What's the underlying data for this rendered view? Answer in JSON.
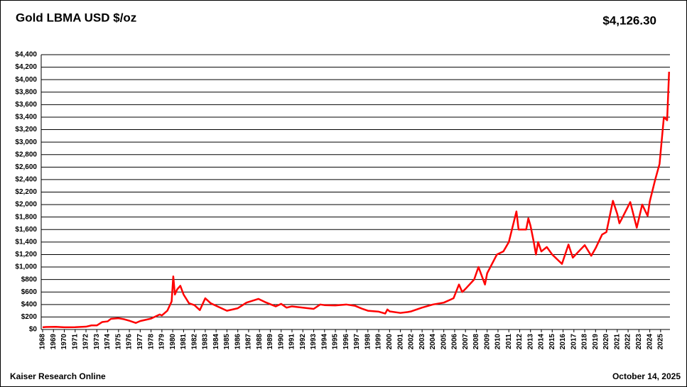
{
  "chart_data": {
    "type": "line",
    "title": "Gold LBMA USD $/oz",
    "latest_value": "$4,126.30",
    "source": "Kaiser Research Online",
    "date": "October 14, 2025",
    "series": [
      {
        "name": "Gold",
        "color": "#ff0000",
        "x": [
          1968.0,
          1968.3,
          1969.2,
          1970.0,
          1971.0,
          1972.0,
          1972.5,
          1973.0,
          1973.5,
          1974.0,
          1974.3,
          1975.0,
          1975.5,
          1976.0,
          1976.6,
          1977.0,
          1978.0,
          1978.8,
          1979.0,
          1979.5,
          1979.9,
          1980.05,
          1980.2,
          1980.4,
          1980.7,
          1981.0,
          1981.5,
          1982.0,
          1982.5,
          1983.0,
          1983.5,
          1984.0,
          1985.0,
          1986.0,
          1986.8,
          1987.9,
          1988.5,
          1989.5,
          1990.0,
          1990.5,
          1991.0,
          1992.0,
          1993.0,
          1993.6,
          1994.0,
          1995.0,
          1996.0,
          1996.8,
          1997.5,
          1998.0,
          1999.0,
          1999.6,
          1999.8,
          2000.0,
          2001.0,
          2001.7,
          2002.0,
          2002.5,
          2003.0,
          2004.0,
          2005.0,
          2005.9,
          2006.4,
          2006.7,
          2007.0,
          2007.8,
          2008.2,
          2008.8,
          2009.0,
          2009.9,
          2010.5,
          2011.0,
          2011.7,
          2011.9,
          2012.6,
          2012.8,
          2013.0,
          2013.3,
          2013.5,
          2013.7,
          2014.0,
          2014.5,
          2015.0,
          2015.9,
          2016.5,
          2016.9,
          2017.5,
          2018.0,
          2018.6,
          2019.0,
          2019.6,
          2020.0,
          2020.6,
          2021.0,
          2021.2,
          2021.5,
          2022.2,
          2022.8,
          2023.3,
          2023.8,
          2024.0,
          2024.5,
          2024.9,
          2025.3,
          2025.6,
          2025.78
        ],
        "values": [
          35,
          40,
          43,
          35,
          37,
          45,
          65,
          65,
          120,
          130,
          170,
          180,
          165,
          140,
          105,
          135,
          175,
          240,
          225,
          300,
          450,
          850,
          560,
          640,
          700,
          560,
          420,
          390,
          310,
          500,
          420,
          380,
          300,
          340,
          430,
          490,
          440,
          370,
          410,
          350,
          370,
          350,
          330,
          400,
          390,
          385,
          400,
          380,
          330,
          300,
          285,
          255,
          320,
          290,
          265,
          280,
          290,
          320,
          350,
          400,
          430,
          500,
          720,
          600,
          650,
          800,
          1000,
          720,
          900,
          1200,
          1250,
          1400,
          1890,
          1600,
          1600,
          1780,
          1660,
          1400,
          1200,
          1400,
          1250,
          1320,
          1200,
          1050,
          1360,
          1150,
          1260,
          1350,
          1180,
          1300,
          1520,
          1560,
          2060,
          1850,
          1700,
          1800,
          2040,
          1630,
          2000,
          1820,
          2050,
          2400,
          2650,
          3400,
          3350,
          4126.3
        ]
      }
    ],
    "xlim": [
      1968,
      2025.86
    ],
    "xticks": [
      1968,
      1969,
      1970,
      1971,
      1972,
      1973,
      1974,
      1975,
      1976,
      1977,
      1978,
      1979,
      1980,
      1981,
      1982,
      1983,
      1984,
      1985,
      1986,
      1987,
      1988,
      1989,
      1990,
      1991,
      1992,
      1993,
      1994,
      1995,
      1996,
      1997,
      1998,
      1999,
      2000,
      2001,
      2002,
      2003,
      2004,
      2005,
      2006,
      2007,
      2008,
      2009,
      2010,
      2011,
      2012,
      2013,
      2014,
      2015,
      2016,
      2017,
      2018,
      2019,
      2020,
      2021,
      2022,
      2023,
      2024,
      2025
    ],
    "ylim": [
      0,
      4400
    ],
    "yticks": [
      {
        "value": 0,
        "label": "$0"
      },
      {
        "value": 200,
        "label": "$200"
      },
      {
        "value": 400,
        "label": "$400"
      },
      {
        "value": 600,
        "label": "$600"
      },
      {
        "value": 800,
        "label": "$800"
      },
      {
        "value": 1000,
        "label": "$1,000"
      },
      {
        "value": 1200,
        "label": "$1,200"
      },
      {
        "value": 1400,
        "label": "$1,400"
      },
      {
        "value": 1600,
        "label": "$1,600"
      },
      {
        "value": 1800,
        "label": "$1,800"
      },
      {
        "value": 2000,
        "label": "$2,000"
      },
      {
        "value": 2200,
        "label": "$2,200"
      },
      {
        "value": 2400,
        "label": "$2,400"
      },
      {
        "value": 2600,
        "label": "$2,600"
      },
      {
        "value": 2800,
        "label": "$2,800"
      },
      {
        "value": 3000,
        "label": "$3,000"
      },
      {
        "value": 3200,
        "label": "$3,200"
      },
      {
        "value": 3400,
        "label": "$3,400"
      },
      {
        "value": 3600,
        "label": "$3,600"
      },
      {
        "value": 3800,
        "label": "$3,800"
      },
      {
        "value": 4000,
        "label": "$4,000"
      },
      {
        "value": 4200,
        "label": "$4,200"
      },
      {
        "value": 4400,
        "label": "$4,400"
      }
    ],
    "grid": true
  }
}
